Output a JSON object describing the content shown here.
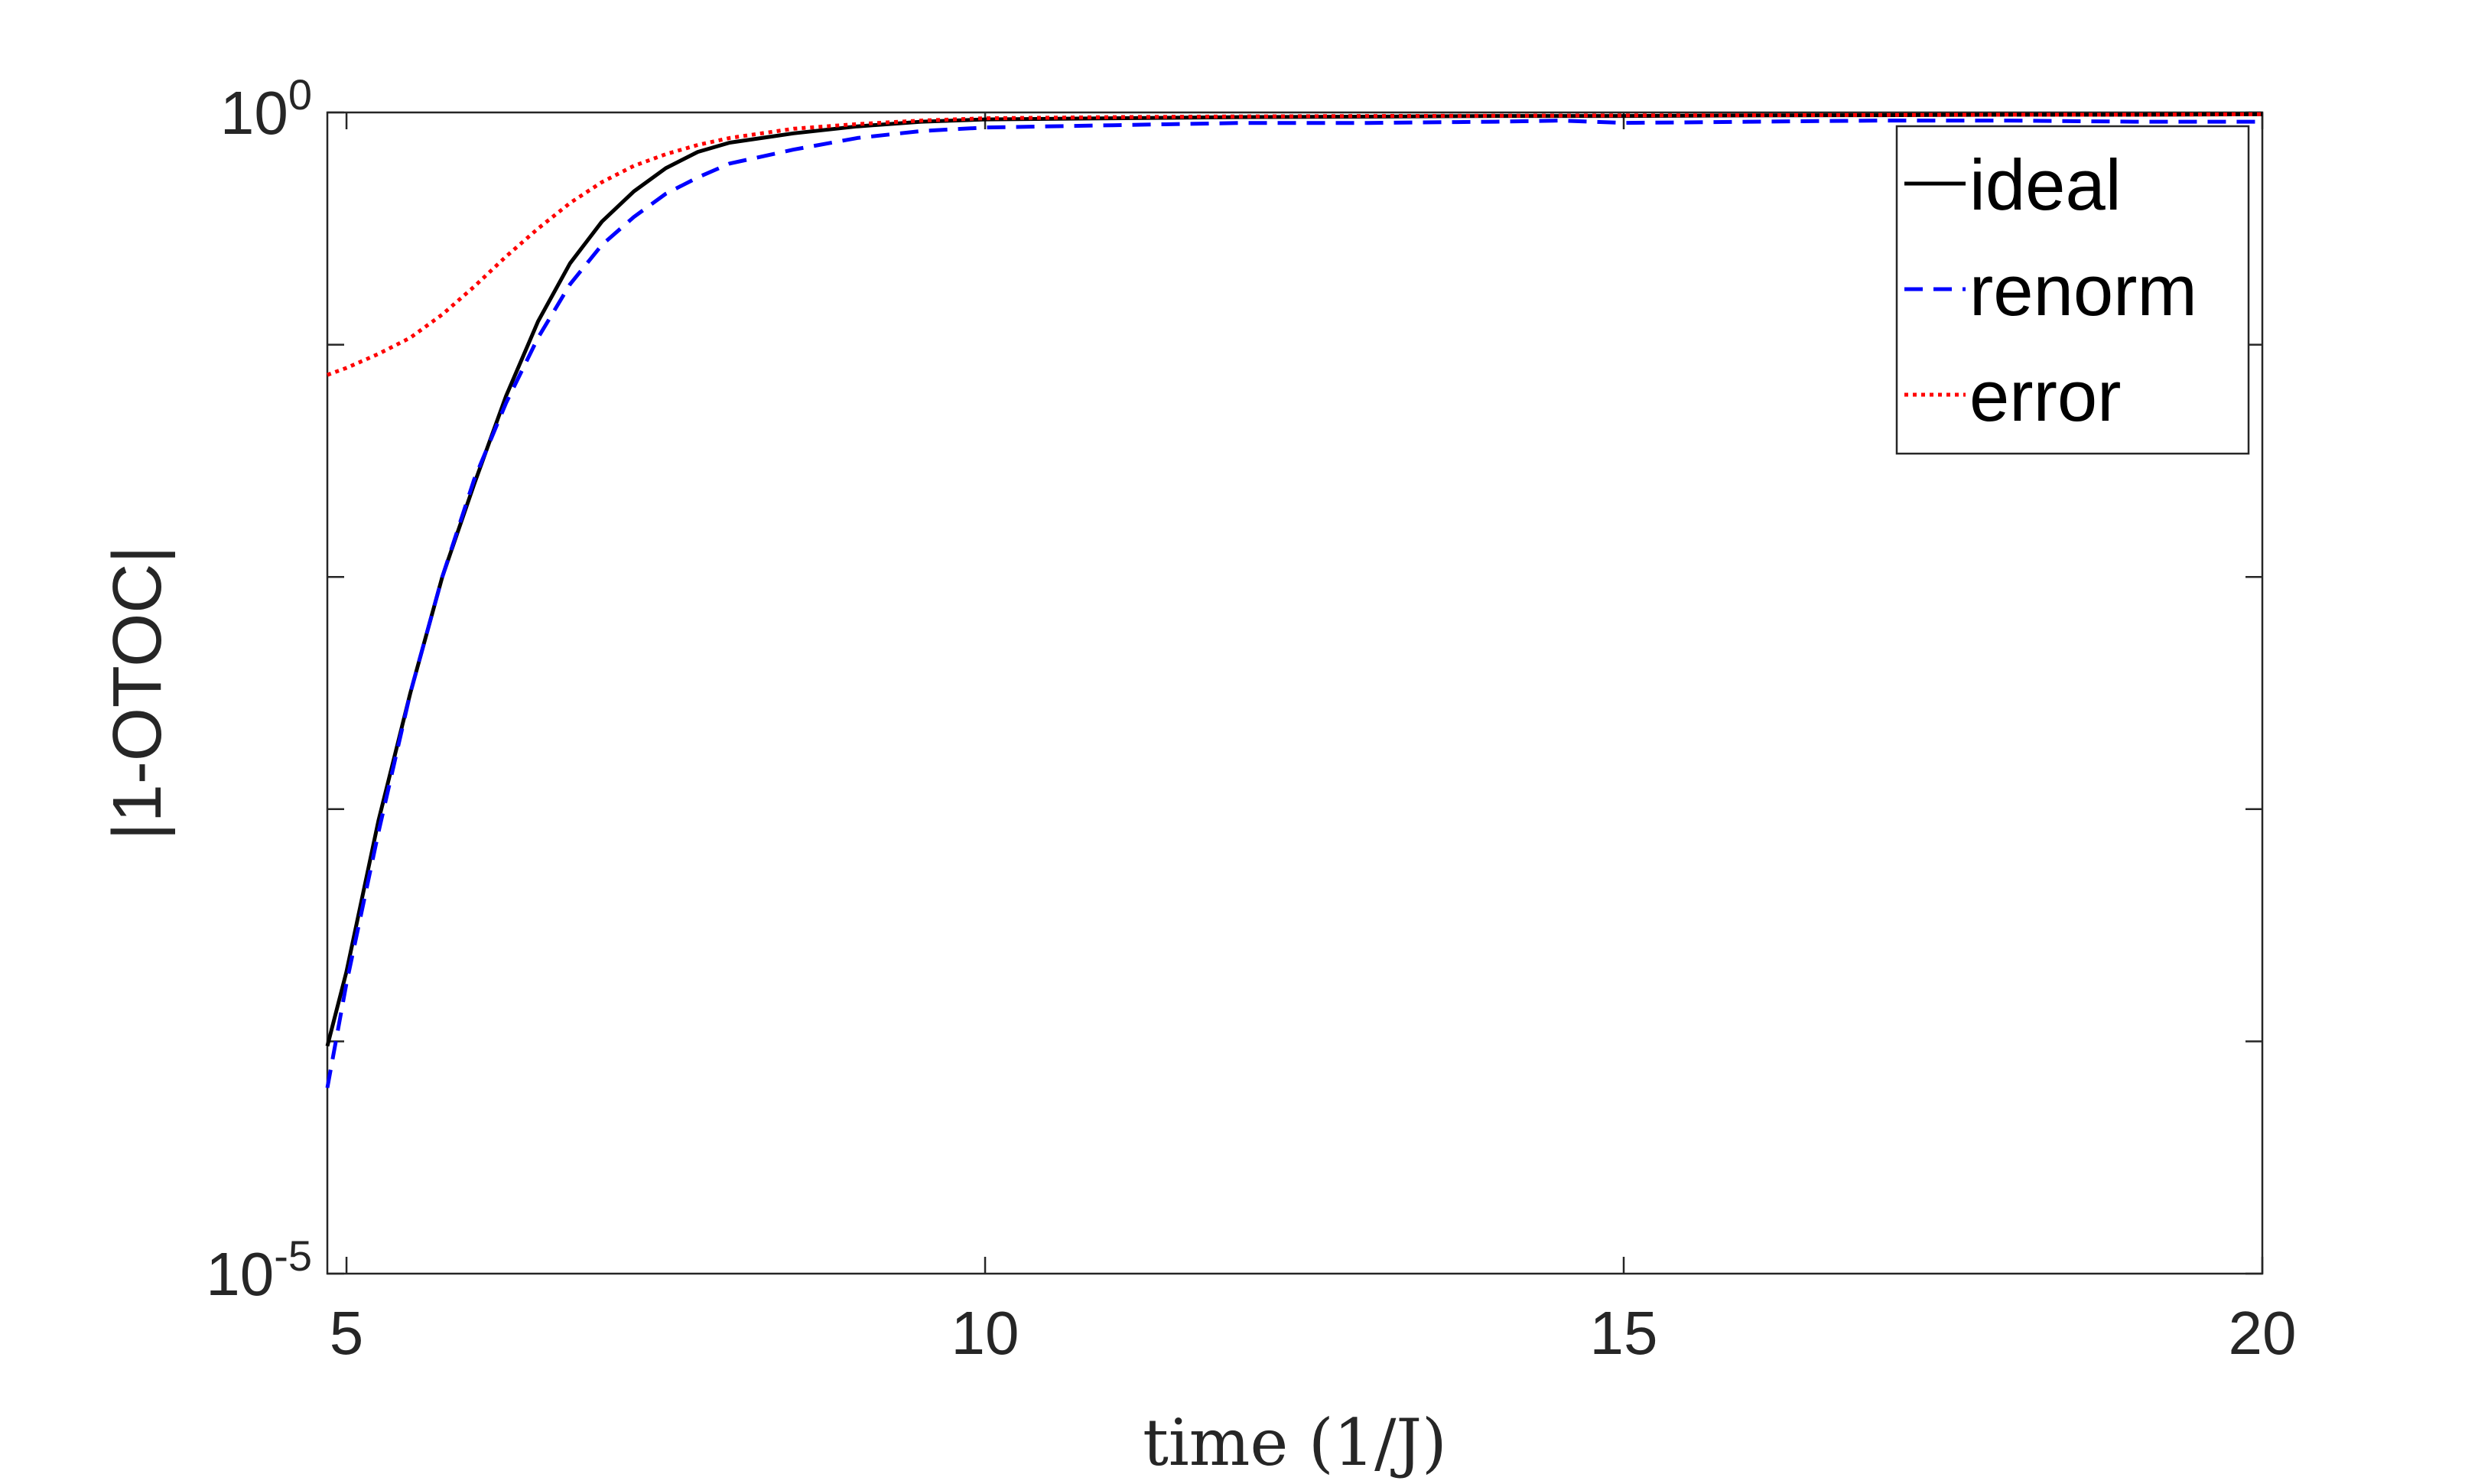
{
  "chart_data": {
    "type": "line",
    "xlabel": "time (1/J)",
    "ylabel": "|1-OTOC|",
    "xlim": [
      4.85,
      20
    ],
    "ylim_exponent": [
      -5,
      0
    ],
    "y_scale": "log",
    "grid": false,
    "legend_placement": "top-right",
    "x_ticks": [
      {
        "value": 5,
        "label": "5"
      },
      {
        "value": 10,
        "label": "10"
      },
      {
        "value": 15,
        "label": "15"
      },
      {
        "value": 20,
        "label": "20"
      }
    ],
    "y_ticks": [
      {
        "exponent": -5,
        "base": "10",
        "power": "-5"
      },
      {
        "exponent": 0,
        "base": "10",
        "power": "0"
      }
    ],
    "y_minor_exponents": [
      -4,
      -3,
      -2,
      -1
    ],
    "series": [
      {
        "name": "ideal",
        "color": "#000000",
        "dash": "solid",
        "x": [
          4.85,
          5.0,
          5.25,
          5.5,
          5.75,
          6.0,
          6.25,
          6.5,
          6.75,
          7.0,
          7.25,
          7.5,
          7.75,
          8.0,
          8.5,
          9.0,
          9.5,
          10.0,
          11.0,
          12.0,
          13.0,
          14.0,
          15.0,
          16.0,
          17.0,
          18.0,
          19.0,
          20.0
        ],
        "log10_y": [
          -4.02,
          -3.7,
          -3.05,
          -2.5,
          -2.0,
          -1.6,
          -1.22,
          -0.9,
          -0.65,
          -0.47,
          -0.34,
          -0.24,
          -0.17,
          -0.13,
          -0.09,
          -0.06,
          -0.04,
          -0.03,
          -0.025,
          -0.02,
          -0.018,
          -0.015,
          -0.015,
          -0.013,
          -0.012,
          -0.01,
          -0.01,
          -0.008
        ]
      },
      {
        "name": "renorm",
        "color": "#0000ff",
        "dash": "dashed",
        "x": [
          4.85,
          5.0,
          5.25,
          5.5,
          5.75,
          6.0,
          6.25,
          6.5,
          6.75,
          7.0,
          7.25,
          7.5,
          7.75,
          8.0,
          8.5,
          9.0,
          9.5,
          10.0,
          11.0,
          12.0,
          13.0,
          14.0,
          14.5,
          15.0,
          16.0,
          17.0,
          18.0,
          19.0,
          20.0
        ],
        "log10_y": [
          -4.2,
          -3.75,
          -3.1,
          -2.5,
          -2.0,
          -1.58,
          -1.25,
          -0.97,
          -0.74,
          -0.57,
          -0.45,
          -0.35,
          -0.28,
          -0.22,
          -0.16,
          -0.11,
          -0.08,
          -0.065,
          -0.055,
          -0.045,
          -0.045,
          -0.04,
          -0.035,
          -0.045,
          -0.04,
          -0.035,
          -0.035,
          -0.04,
          -0.04
        ]
      },
      {
        "name": "error",
        "color": "#ff0000",
        "dash": "dotted",
        "x": [
          4.85,
          5.0,
          5.25,
          5.5,
          5.75,
          6.0,
          6.25,
          6.5,
          6.75,
          7.0,
          7.25,
          7.5,
          7.75,
          8.0,
          8.5,
          9.0,
          9.5,
          10.0,
          11.0,
          12.0,
          13.0,
          14.0,
          15.0,
          16.0,
          17.0,
          18.0,
          19.0,
          20.0
        ],
        "log10_y": [
          -1.13,
          -1.1,
          -1.04,
          -0.97,
          -0.87,
          -0.75,
          -0.62,
          -0.5,
          -0.39,
          -0.3,
          -0.23,
          -0.18,
          -0.14,
          -0.11,
          -0.07,
          -0.05,
          -0.035,
          -0.025,
          -0.02,
          -0.017,
          -0.015,
          -0.014,
          -0.013,
          -0.012,
          -0.011,
          -0.01,
          -0.01,
          -0.008
        ]
      }
    ]
  }
}
